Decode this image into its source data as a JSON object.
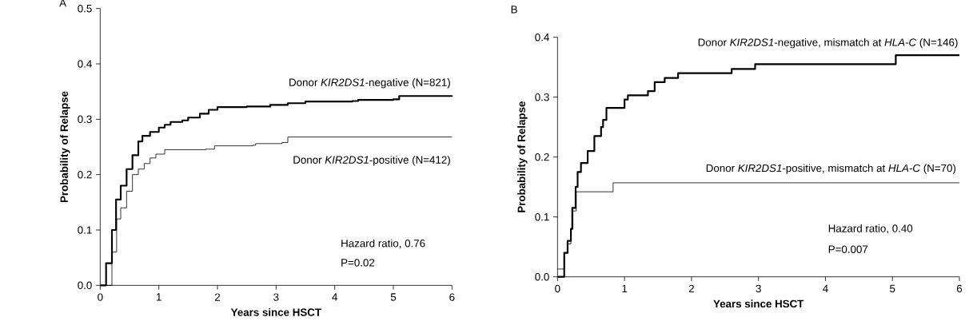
{
  "chart_data": [
    {
      "type": "step",
      "title": "A",
      "xlabel": "Years since HSCT",
      "ylabel": "Probability of Relapse",
      "xlim": [
        0,
        6
      ],
      "ylim": [
        0,
        0.5
      ],
      "xticks": [
        0,
        1,
        2,
        3,
        4,
        5,
        6
      ],
      "yticks": [
        {
          "value": 0,
          "label": "0.0"
        },
        0.1,
        0.2,
        0.3,
        0.4,
        0.5
      ],
      "legend": false,
      "grid": false,
      "line_style": "solid",
      "series": [
        {
          "name": "Donor *KIR2DS1*-negative (N=821)",
          "color": "#000000",
          "x": [
            0,
            0.05,
            0.1,
            0.2,
            0.27,
            0.35,
            0.45,
            0.55,
            0.65,
            0.72,
            0.85,
            1.0,
            1.1,
            1.2,
            1.4,
            1.5,
            1.7,
            1.85,
            2.0,
            2.5,
            2.9,
            3.2,
            3.5,
            4.3,
            4.4,
            5.0,
            5.1,
            6.0
          ],
          "values": [
            0,
            0,
            0.04,
            0.1,
            0.155,
            0.18,
            0.21,
            0.235,
            0.26,
            0.27,
            0.277,
            0.285,
            0.29,
            0.295,
            0.298,
            0.303,
            0.31,
            0.317,
            0.322,
            0.323,
            0.326,
            0.329,
            0.332,
            0.333,
            0.335,
            0.336,
            0.342,
            0.343
          ]
        },
        {
          "name": "Donor *KIR2DS1*-positive (N=412)",
          "color": "#000000",
          "x": [
            0,
            0.1,
            0.2,
            0.28,
            0.35,
            0.45,
            0.55,
            0.65,
            0.75,
            0.85,
            0.95,
            1.1,
            1.8,
            1.95,
            2.6,
            2.65,
            3.1,
            3.2,
            6.0
          ],
          "values": [
            0,
            0,
            0.06,
            0.12,
            0.14,
            0.17,
            0.2,
            0.21,
            0.22,
            0.23,
            0.237,
            0.245,
            0.246,
            0.252,
            0.253,
            0.256,
            0.258,
            0.268,
            0.268
          ]
        }
      ],
      "annotations": [
        "Hazard ratio, 0.76",
        "P=0.02"
      ]
    },
    {
      "type": "step",
      "title": "B",
      "xlabel": "Years since HSCT",
      "ylabel": "Probability of Relapse",
      "xlim": [
        0,
        6
      ],
      "ylim": [
        0,
        0.4
      ],
      "xticks": [
        0,
        1,
        2,
        3,
        4,
        5,
        6
      ],
      "yticks": [
        {
          "value": 0,
          "label": "0.0"
        },
        0.1,
        0.2,
        0.3,
        0.4
      ],
      "legend": false,
      "grid": false,
      "line_style": "solid",
      "series": [
        {
          "name": "Donor *KIR2DS1*-negative, mismatch at *HLA-C* (N=146)",
          "color": "#000000",
          "x": [
            0,
            0.08,
            0.1,
            0.15,
            0.2,
            0.22,
            0.27,
            0.3,
            0.35,
            0.45,
            0.55,
            0.65,
            0.68,
            0.73,
            1.0,
            1.05,
            1.35,
            1.45,
            1.6,
            1.8,
            2.6,
            2.95,
            5.05,
            6.0
          ],
          "values": [
            0,
            0,
            0.04,
            0.06,
            0.08,
            0.115,
            0.15,
            0.175,
            0.19,
            0.21,
            0.235,
            0.25,
            0.262,
            0.282,
            0.296,
            0.303,
            0.31,
            0.325,
            0.332,
            0.34,
            0.347,
            0.355,
            0.37,
            0.37
          ]
        },
        {
          "name": "Donor *KIR2DS1*-positive, mismatch at *HLA-C* (N=70)",
          "color": "#000000",
          "x": [
            0,
            0.1,
            0.15,
            0.2,
            0.23,
            0.28,
            0.83,
            6.0
          ],
          "values": [
            0.013,
            0.04,
            0.055,
            0.08,
            0.11,
            0.142,
            0.157,
            0.157
          ]
        }
      ],
      "annotations": [
        "Hazard ratio, 0.40",
        "P=0.007"
      ]
    }
  ]
}
